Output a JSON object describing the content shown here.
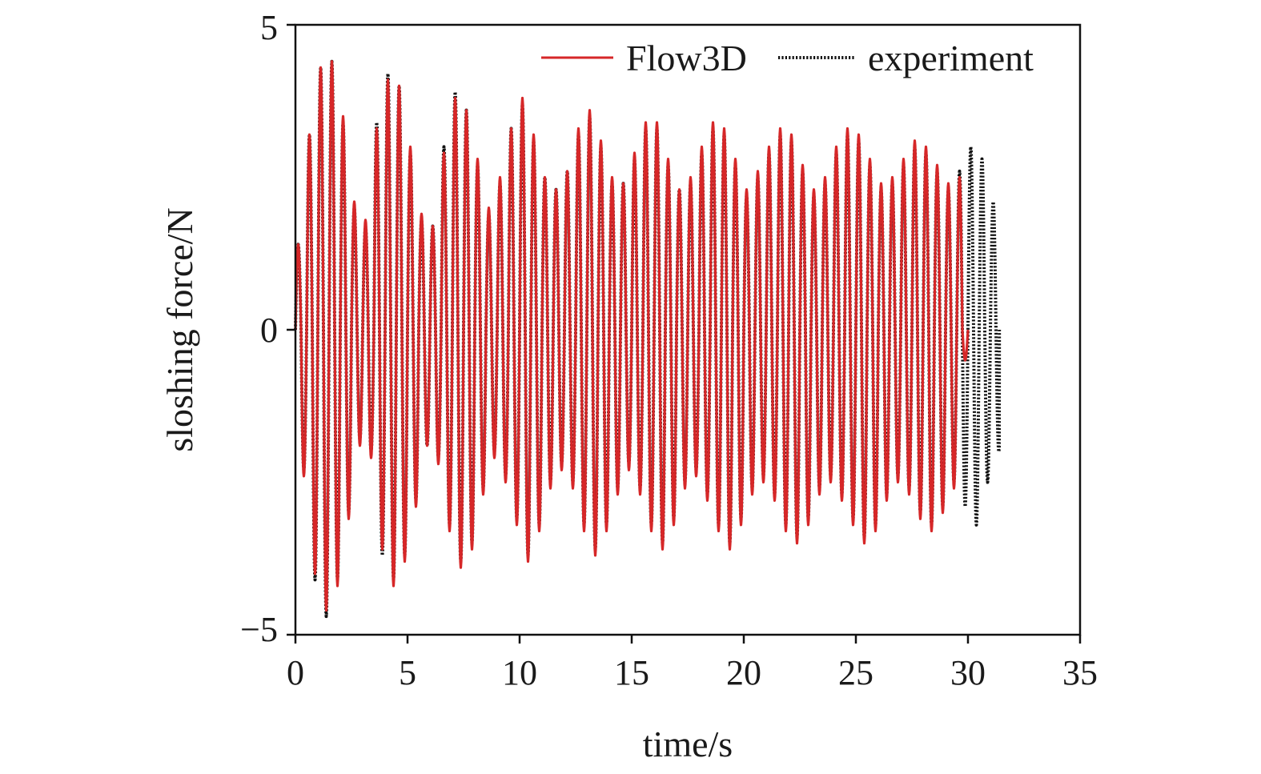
{
  "chart_data": {
    "type": "line",
    "xlabel": "time/s",
    "ylabel": "sloshing force/N",
    "xlim": [
      0,
      35
    ],
    "ylim": [
      -5,
      5
    ],
    "xticks": [
      0,
      5,
      10,
      15,
      20,
      25,
      30,
      35
    ],
    "xtick_labels": [
      "0",
      "5",
      "10",
      "15",
      "20",
      "25",
      "30",
      "35"
    ],
    "yticks": [
      -5,
      0,
      5
    ],
    "ytick_labels": [
      "−5",
      "0",
      "5"
    ],
    "grid": false,
    "legend_position": "top-right",
    "series": [
      {
        "name": "Flow3D",
        "color": "#d62728",
        "line_style": "solid",
        "x_start": 0.0,
        "x_end": 30.0,
        "period_s": 0.5,
        "peaks": [
          1.4,
          3.2,
          4.3,
          4.4,
          3.5,
          2.1,
          1.8,
          3.3,
          4.1,
          4.0,
          3.0,
          1.9,
          1.7,
          2.9,
          3.8,
          3.6,
          2.8,
          2.0,
          2.5,
          3.3,
          3.8,
          3.2,
          2.5,
          2.3,
          2.6,
          3.3,
          3.6,
          3.1,
          2.5,
          2.4,
          2.9,
          3.4,
          3.4,
          2.8,
          2.3,
          2.5,
          3.0,
          3.4,
          3.3,
          2.8,
          2.3,
          2.6,
          3.0,
          3.3,
          3.2,
          2.7,
          2.3,
          2.5,
          3.0,
          3.3,
          3.2,
          2.8,
          2.4,
          2.5,
          2.8,
          3.1,
          3.0,
          2.7,
          2.4,
          2.5
        ],
        "troughs": [
          -2.4,
          -4.0,
          -4.6,
          -4.2,
          -3.1,
          -1.9,
          -2.1,
          -3.6,
          -4.2,
          -3.8,
          -2.9,
          -1.9,
          -2.2,
          -3.3,
          -3.9,
          -3.6,
          -2.7,
          -2.1,
          -2.5,
          -3.2,
          -3.8,
          -3.3,
          -2.6,
          -2.3,
          -2.6,
          -3.3,
          -3.7,
          -3.3,
          -2.7,
          -2.3,
          -2.7,
          -3.3,
          -3.6,
          -3.2,
          -2.6,
          -2.4,
          -2.8,
          -3.3,
          -3.6,
          -3.2,
          -2.7,
          -2.5,
          -2.8,
          -3.3,
          -3.5,
          -3.2,
          -2.7,
          -2.5,
          -2.8,
          -3.2,
          -3.5,
          -3.3,
          -2.8,
          -2.5,
          -2.7,
          -3.1,
          -3.3,
          -3.0,
          -2.6,
          -0.5
        ]
      },
      {
        "name": "experiment",
        "color": "#111111",
        "line_style": "dotted",
        "x_start": 0.0,
        "x_end": 31.4,
        "period_s": 0.5,
        "peaks": [
          1.4,
          3.2,
          4.3,
          4.4,
          3.4,
          2.0,
          1.7,
          3.4,
          4.2,
          4.0,
          2.9,
          1.8,
          1.7,
          3.0,
          3.9,
          3.6,
          2.7,
          1.9,
          2.4,
          3.3,
          3.7,
          3.1,
          2.5,
          2.3,
          2.6,
          3.2,
          3.5,
          3.0,
          2.4,
          2.4,
          2.8,
          3.3,
          3.3,
          2.7,
          2.3,
          2.4,
          2.9,
          3.3,
          3.2,
          2.7,
          2.2,
          2.5,
          2.9,
          3.2,
          3.1,
          2.6,
          2.2,
          2.4,
          2.9,
          3.2,
          3.1,
          2.7,
          2.3,
          2.4,
          2.7,
          3.0,
          2.9,
          2.6,
          2.3,
          2.6,
          3.0,
          2.8,
          2.1
        ],
        "troughs": [
          -2.3,
          -4.1,
          -4.7,
          -4.1,
          -3.0,
          -1.8,
          -2.0,
          -3.7,
          -4.1,
          -3.7,
          -2.8,
          -1.9,
          -2.1,
          -3.2,
          -3.8,
          -3.5,
          -2.6,
          -2.0,
          -2.4,
          -3.1,
          -3.7,
          -3.2,
          -2.5,
          -2.2,
          -2.5,
          -3.2,
          -3.6,
          -3.2,
          -2.6,
          -2.2,
          -2.6,
          -3.2,
          -3.5,
          -3.1,
          -2.5,
          -2.3,
          -2.7,
          -3.2,
          -3.5,
          -3.1,
          -2.6,
          -2.4,
          -2.7,
          -3.2,
          -3.4,
          -3.1,
          -2.6,
          -2.4,
          -2.7,
          -3.1,
          -3.4,
          -3.2,
          -2.7,
          -2.4,
          -2.6,
          -3.0,
          -3.2,
          -2.9,
          -2.5,
          -2.9,
          -3.2,
          -2.5,
          -2.0
        ]
      }
    ]
  }
}
